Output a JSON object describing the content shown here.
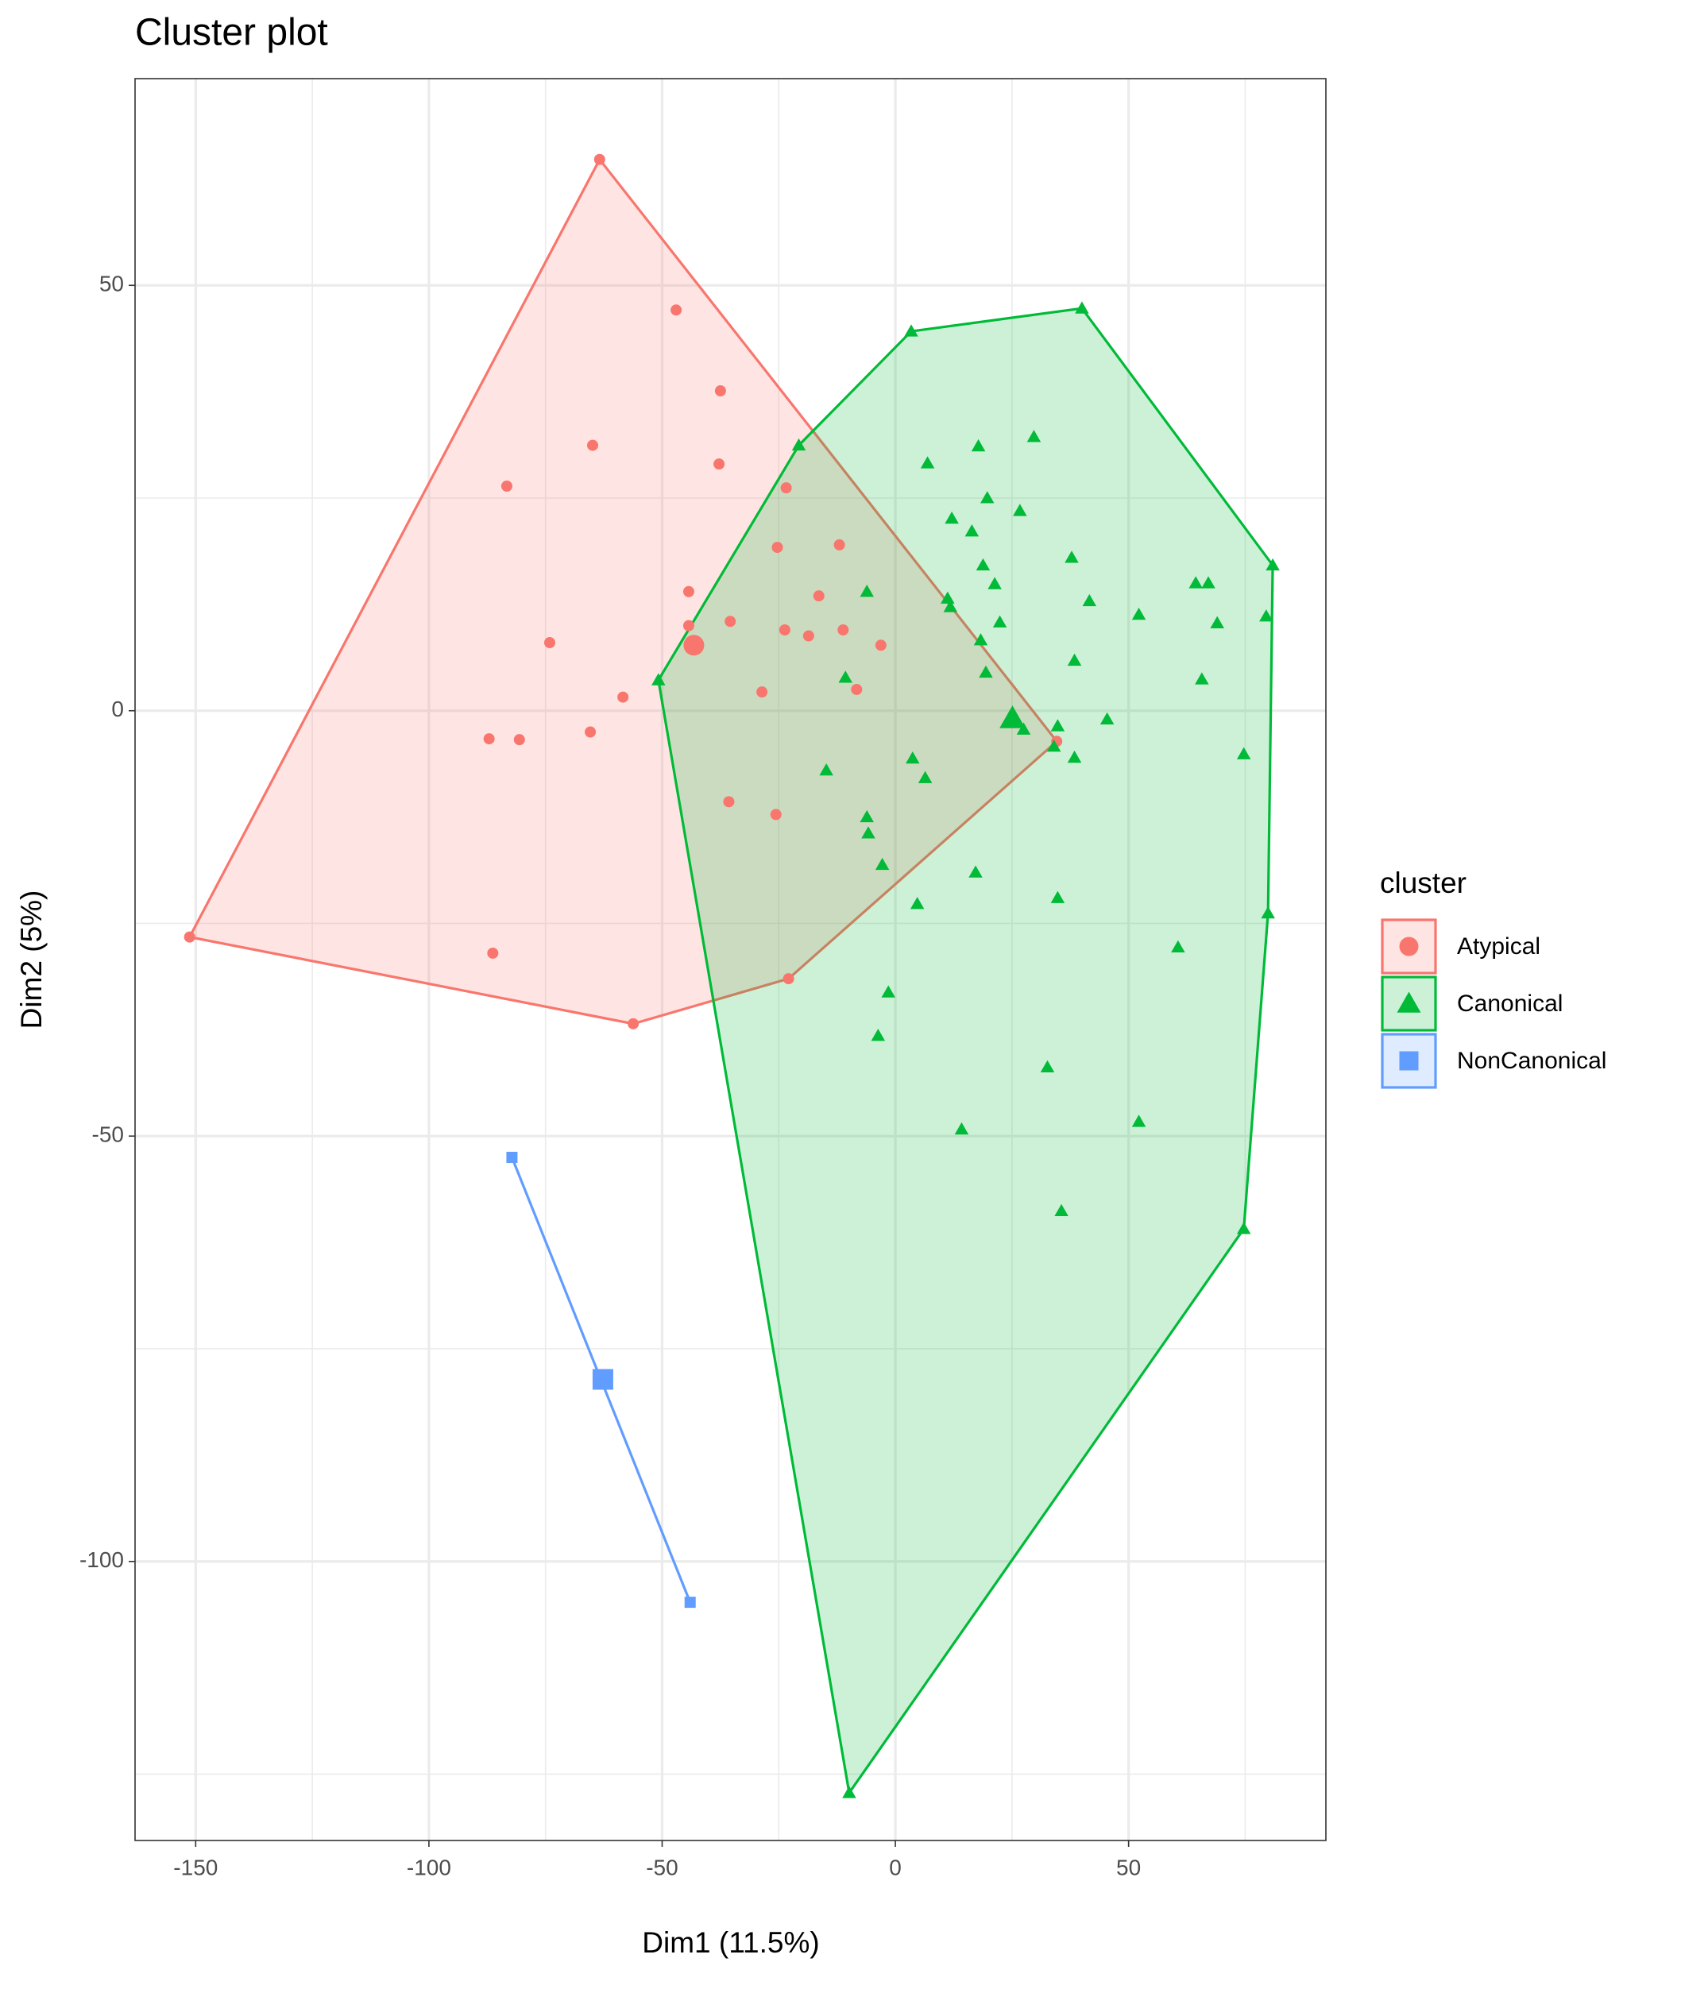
{
  "chart_data": {
    "type": "scatter",
    "title": "Cluster plot",
    "x_label": "Dim1 (11.5%)",
    "y_label": "Dim2 (5%)",
    "legend_title": "cluster",
    "legend_position": "right",
    "grid": true,
    "xlim": [
      -163,
      92.3
    ],
    "ylim": [
      -132.8,
      74.3
    ],
    "xticks": [
      -150,
      -100,
      -50,
      0,
      50
    ],
    "yticks": [
      -100,
      -50,
      0,
      50
    ],
    "series": [
      {
        "name": "Atypical",
        "color": "#F8766D",
        "shape": "circle",
        "x": [
          -63.4,
          -47.0,
          -37.5,
          -64.9,
          -37.8,
          -83.3,
          -23.4,
          -25.3,
          -12.0,
          -44.3,
          -16.4,
          -35.4,
          -44.3,
          -23.7,
          -11.2,
          -18.6,
          -74.1,
          -3.1,
          -28.6,
          -8.3,
          -58.4,
          -87.1,
          -80.6,
          -65.4,
          34.6,
          -35.7,
          -25.6,
          -151.3,
          -86.3,
          -22.9,
          -56.2
        ],
        "values": [
          64.8,
          47.1,
          37.6,
          31.2,
          29.0,
          26.4,
          26.2,
          19.2,
          19.5,
          14.0,
          13.5,
          10.5,
          10.0,
          9.5,
          9.5,
          8.8,
          8.0,
          7.7,
          2.2,
          2.5,
          1.6,
          -3.3,
          -3.4,
          -2.5,
          -3.6,
          -10.7,
          -12.2,
          -26.6,
          -28.5,
          -31.5,
          -36.8
        ],
        "center": [
          -43.2,
          7.7
        ]
      },
      {
        "name": "Canonical",
        "color": "#00BA38",
        "shape": "triangle",
        "x": [
          3.4,
          40.0,
          -20.7,
          6.9,
          17.8,
          29.7,
          19.7,
          12.1,
          26.7,
          16.4,
          18.8,
          37.8,
          21.3,
          -6.1,
          64.4,
          67.1,
          11.2,
          41.6,
          11.8,
          52.2,
          79.5,
          80.9,
          22.4,
          69.0,
          18.3,
          38.4,
          -10.7,
          19.4,
          65.7,
          -50.8,
          27.5,
          34.8,
          45.4,
          34.0,
          38.4,
          74.7,
          3.7,
          6.4,
          -14.8,
          -6.1,
          -5.8,
          -2.8,
          17.2,
          4.7,
          34.8,
          79.9,
          60.6,
          -1.5,
          -3.7,
          32.6,
          14.2,
          52.2,
          35.6,
          74.7,
          -9.9
        ],
        "values": [
          44.6,
          47.3,
          31.2,
          29.1,
          31.1,
          32.2,
          25.0,
          22.6,
          23.5,
          21.1,
          17.1,
          18.0,
          14.9,
          14.0,
          15.0,
          15.0,
          13.2,
          12.9,
          12.2,
          11.3,
          11.1,
          17.1,
          10.4,
          10.3,
          8.3,
          5.9,
          3.9,
          4.5,
          3.7,
          3.6,
          -2.2,
          -1.8,
          -1.0,
          -4.2,
          -5.5,
          -5.1,
          -5.6,
          -7.9,
          -7.0,
          -12.5,
          -14.4,
          -18.1,
          -19.0,
          -22.7,
          -22.0,
          -23.8,
          -27.8,
          -33.1,
          -38.2,
          -41.9,
          -49.2,
          -48.3,
          -58.8,
          -60.9,
          -127.2
        ],
        "center": [
          25.1,
          -0.9
        ]
      },
      {
        "name": "NonCanonical",
        "color": "#619CFF",
        "shape": "square",
        "x": [
          -82.2,
          -44.0
        ],
        "values": [
          -52.5,
          -104.8
        ],
        "center": [
          -62.7,
          -78.6
        ]
      }
    ]
  }
}
